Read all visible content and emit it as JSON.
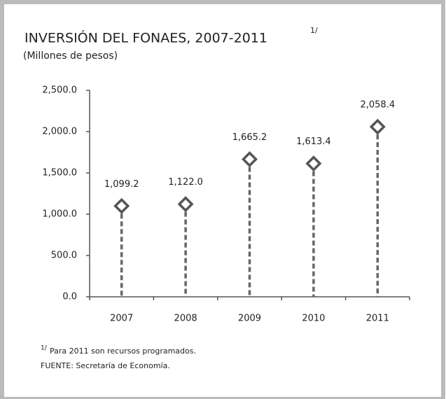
{
  "chart_data": {
    "type": "lollipop",
    "title": "INVERSIÓN DEL FONAES, 2007-2011",
    "title_note": "1/",
    "subtitle": "(Millones de pesos)",
    "categories": [
      "2007",
      "2008",
      "2009",
      "2010",
      "2011"
    ],
    "values": [
      1099.2,
      1122.0,
      1665.2,
      1613.4,
      2058.4
    ],
    "value_labels": [
      "1,099.2",
      "1,122.0",
      "1,665.2",
      "1,613.4",
      "2,058.4"
    ],
    "color": "#666666",
    "ylim": [
      0,
      2500
    ],
    "yticks": [
      {
        "value": 0,
        "label": "0.0"
      },
      {
        "value": 500,
        "label": "500.0"
      },
      {
        "value": 1000,
        "label": "1,000.0"
      },
      {
        "value": 1500,
        "label": "1,500.0"
      },
      {
        "value": 2000,
        "label": "2,000.0"
      },
      {
        "value": 2500,
        "label": "2,500.0"
      }
    ],
    "footnote_marker": "1/",
    "footnote": "Para 2011 son recursos programados.",
    "source": "FUENTE: Secretaría de Economía."
  }
}
